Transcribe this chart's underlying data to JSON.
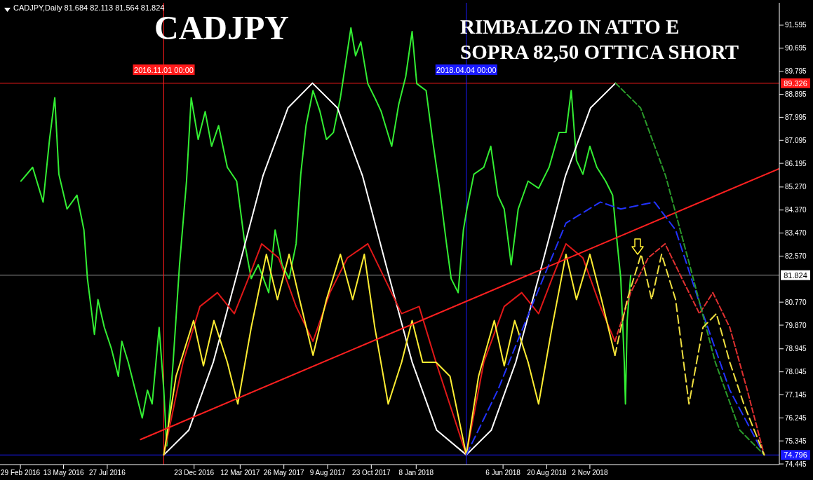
{
  "chart_data": {
    "type": "line",
    "title": "CADJPY",
    "subtitle": "RIMBALZO IN ATTO E\nSOPRA 82,50 OTTICA SHORT",
    "annotations": [
      "CADJPY,Daily 81.684 82.113 81.564 81.824"
    ],
    "xlim": [
      "2016-01-25",
      "2019-09-23"
    ],
    "xticks": [
      {
        "value": "2016-02-29",
        "label": "29 Feb 2016"
      },
      {
        "value": "2016-05-13",
        "label": "13 May 2016"
      },
      {
        "value": "2016-07-27",
        "label": "27 Jul 2016"
      },
      {
        "value": "2016-12-23",
        "label": "23 Dec 2016"
      },
      {
        "value": "2017-03-12",
        "label": "12 Mar 2017"
      },
      {
        "value": "2017-05-26",
        "label": "26 May 2017"
      },
      {
        "value": "2017-08-09",
        "label": "9 Aug 2017"
      },
      {
        "value": "2017-10-23",
        "label": "23 Oct 2017"
      },
      {
        "value": "2018-01-08",
        "label": "8 Jan 2018"
      },
      {
        "value": "2018-06-06",
        "label": "6 Jun 2018"
      },
      {
        "value": "2018-08-20",
        "label": "20 Aug 2018"
      },
      {
        "value": "2018-11-02",
        "label": "2 Nov 2018"
      }
    ],
    "ylim": [
      74.42,
      92.47
    ],
    "yticks": [
      91.595,
      90.695,
      89.795,
      88.895,
      87.995,
      87.095,
      86.195,
      {
        "value": 85.27,
        "label": "85.270"
      },
      {
        "value": 84.37,
        "label": "84.370"
      },
      {
        "value": 83.47,
        "label": "83.470"
      },
      {
        "value": 82.57,
        "label": "82.570"
      },
      {
        "value": 80.77,
        "label": "80.770"
      },
      {
        "value": 79.87,
        "label": "79.870"
      },
      78.945,
      78.045,
      77.145,
      76.245,
      75.345,
      74.445
    ],
    "ref_lines": [
      {
        "axis": "y",
        "value": 89.326,
        "label": "89.326",
        "color": "#ff1a1a"
      },
      {
        "axis": "y",
        "value": 81.824,
        "label": "81.824",
        "color": "#9a9a9a"
      },
      {
        "axis": "y",
        "value": 74.796,
        "label": "74.796",
        "color": "#1a1aff"
      },
      {
        "axis": "x",
        "value": "2016-11-01",
        "label": "2016.11.01 00:00",
        "color": "#ff1a1a"
      },
      {
        "axis": "x",
        "value": "2018-04-04",
        "label": "2018.04.04 00:00",
        "color": "#1a1aff"
      }
    ],
    "series": [
      {
        "color": "#33ee33",
        "x": [
          "2016-03-01",
          "2016-03-21",
          "2016-04-08",
          "2016-04-19",
          "2016-04-28",
          "2016-05-05",
          "2016-05-19",
          "2016-06-05",
          "2016-06-17",
          "2016-06-23",
          "2016-07-05",
          "2016-07-11",
          "2016-07-22",
          "2016-08-03",
          "2016-08-15",
          "2016-08-21",
          "2016-09-01",
          "2016-09-13",
          "2016-09-25",
          "2016-10-04",
          "2016-10-12",
          "2016-10-24",
          "2016-11-01",
          "2016-11-06",
          "2016-11-17",
          "2016-11-28",
          "2016-12-10",
          "2016-12-18",
          "2016-12-30",
          "2017-01-11",
          "2017-01-22",
          "2017-02-03",
          "2017-02-18",
          "2017-03-06",
          "2017-03-20",
          "2017-03-31",
          "2017-04-12",
          "2017-04-30",
          "2017-05-11",
          "2017-05-23",
          "2017-06-04",
          "2017-06-16",
          "2017-06-24",
          "2017-07-03",
          "2017-07-15",
          "2017-07-27",
          "2017-08-07",
          "2017-08-19",
          "2017-08-31",
          "2017-09-09",
          "2017-09-18",
          "2017-09-26",
          "2017-10-05",
          "2017-10-17",
          "2017-10-29",
          "2017-11-09",
          "2017-11-27",
          "2017-12-09",
          "2017-12-21",
          "2018-01-01",
          "2018-01-09",
          "2018-01-25",
          "2018-02-05",
          "2018-02-17",
          "2018-03-01",
          "2018-03-09",
          "2018-03-21",
          "2018-03-30",
          "2018-04-05",
          "2018-04-17",
          "2018-05-04",
          "2018-05-16",
          "2018-05-28",
          "2018-06-08",
          "2018-06-20",
          "2018-07-02",
          "2018-07-19",
          "2018-08-06",
          "2018-08-24",
          "2018-09-10",
          "2018-09-22",
          "2018-10-01",
          "2018-10-10",
          "2018-10-21",
          "2018-11-02",
          "2018-11-14",
          "2018-11-29",
          "2018-12-11",
          "2018-12-19",
          "2018-12-25",
          "2018-12-31",
          "2019-01-02",
          "2019-01-05",
          "2019-01-11"
        ],
        "values": [
          85.5,
          86.04,
          84.68,
          87.13,
          88.76,
          85.77,
          84.41,
          84.95,
          83.59,
          81.69,
          79.51,
          80.87,
          79.78,
          78.96,
          77.87,
          79.24,
          78.42,
          77.33,
          76.24,
          77.33,
          76.79,
          79.78,
          77.33,
          75.15,
          78.42,
          82.23,
          85.5,
          88.76,
          87.13,
          88.22,
          86.86,
          87.67,
          86.04,
          85.5,
          83.05,
          81.69,
          82.23,
          81.14,
          83.59,
          82.23,
          81.69,
          83.05,
          85.77,
          87.67,
          89.04,
          88.22,
          87.13,
          87.4,
          88.76,
          90.12,
          91.49,
          90.4,
          90.94,
          89.31,
          88.76,
          88.22,
          86.86,
          88.49,
          89.58,
          91.35,
          89.31,
          89.04,
          87.13,
          85.22,
          83.05,
          81.69,
          81.14,
          83.59,
          84.41,
          85.77,
          86.04,
          86.86,
          84.95,
          84.41,
          82.23,
          84.41,
          85.5,
          85.22,
          86.04,
          87.4,
          87.4,
          89.04,
          86.31,
          85.77,
          86.86,
          86.04,
          85.5,
          84.95,
          83.05,
          81.69,
          78.42,
          76.79,
          80.05,
          81.82
        ]
      },
      {
        "color": "#ffffff",
        "x": [
          "2016-11-01",
          "2016-12-14",
          "2017-01-25",
          "2017-03-09",
          "2017-04-20",
          "2017-06-02",
          "2017-07-14",
          "2017-08-26",
          "2017-10-08",
          "2017-11-19",
          "2018-01-01",
          "2018-02-12",
          "2018-04-04",
          "2018-05-17",
          "2018-06-28",
          "2018-08-10",
          "2018-09-21",
          "2018-11-03",
          "2018-12-16"
        ],
        "values": [
          74.8,
          75.77,
          78.43,
          82.07,
          85.7,
          88.36,
          89.33,
          88.36,
          85.7,
          82.07,
          78.43,
          75.77,
          74.8,
          75.77,
          78.43,
          82.07,
          85.7,
          88.36,
          89.33
        ]
      },
      {
        "color": "#2a9a2a",
        "line_style": "dashed",
        "x": [
          "2018-12-16",
          "2019-01-28",
          "2019-03-12",
          "2019-04-24",
          "2019-06-05",
          "2019-07-17",
          "2019-08-28"
        ],
        "values": [
          89.33,
          88.36,
          85.7,
          82.07,
          78.43,
          75.77,
          74.8
        ]
      },
      {
        "color": "#e01818",
        "x": [
          "2016-11-01",
          "2016-12-04",
          "2017-01-02",
          "2017-02-01",
          "2017-03-02",
          "2017-03-26",
          "2017-04-18",
          "2017-05-17",
          "2017-06-16",
          "2017-07-15",
          "2017-08-13",
          "2017-09-12",
          "2017-10-17",
          "2017-11-15",
          "2017-12-14",
          "2018-01-13",
          "2018-02-11",
          "2018-04-04",
          "2018-05-04",
          "2018-06-08",
          "2018-07-08",
          "2018-08-06",
          "2018-08-29",
          "2018-09-22",
          "2018-10-21",
          "2018-11-20",
          "2018-12-15"
        ],
        "values": [
          74.8,
          78.42,
          80.6,
          81.14,
          80.32,
          81.69,
          83.05,
          82.5,
          80.6,
          79.24,
          81.14,
          82.5,
          83.05,
          81.69,
          80.32,
          80.6,
          78.42,
          74.8,
          78.42,
          80.6,
          81.14,
          80.32,
          81.69,
          83.05,
          82.5,
          80.6,
          79.24
        ]
      },
      {
        "color": "#e03030",
        "line_style": "dashed",
        "x": [
          "2018-12-15",
          "2019-01-11",
          "2019-02-10",
          "2019-03-11",
          "2019-04-09",
          "2019-05-09",
          "2019-06-01",
          "2019-06-30",
          "2019-07-30",
          "2019-08-28"
        ],
        "values": [
          79.24,
          81.14,
          82.5,
          83.05,
          81.69,
          80.32,
          81.14,
          79.78,
          77.33,
          74.8
        ]
      },
      {
        "color": "#ffee33",
        "x": [
          "2016-11-01",
          "2016-11-22",
          "2016-12-22",
          "2017-01-08",
          "2017-01-26",
          "2017-02-18",
          "2017-03-08",
          "2017-03-31",
          "2017-04-26",
          "2017-05-15",
          "2017-06-04",
          "2017-06-22",
          "2017-07-15",
          "2017-08-07",
          "2017-08-31",
          "2017-09-21",
          "2017-10-11",
          "2017-10-29",
          "2017-11-21",
          "2017-12-14",
          "2018-01-01",
          "2018-01-19",
          "2018-02-11",
          "2018-03-07",
          "2018-04-04",
          "2018-04-25",
          "2018-05-22",
          "2018-06-08",
          "2018-06-26",
          "2018-07-19",
          "2018-08-06",
          "2018-08-29",
          "2018-09-22",
          "2018-10-10",
          "2018-11-02",
          "2018-11-22",
          "2018-12-15"
        ],
        "values": [
          74.8,
          77.87,
          80.05,
          78.28,
          80.05,
          78.42,
          76.79,
          79.78,
          82.64,
          80.87,
          82.64,
          80.87,
          78.69,
          80.87,
          82.64,
          80.87,
          82.64,
          79.78,
          76.79,
          78.42,
          80.05,
          78.42,
          78.42,
          77.87,
          74.8,
          77.87,
          80.05,
          78.28,
          80.05,
          78.42,
          76.79,
          79.78,
          82.64,
          80.87,
          82.64,
          80.87,
          78.69
        ]
      },
      {
        "color": "#f0e040",
        "line_style": "dashed",
        "x": [
          "2018-12-15",
          "2019-01-05",
          "2019-01-29",
          "2019-02-16",
          "2019-03-05",
          "2019-03-29",
          "2019-04-21",
          "2019-05-15",
          "2019-06-07",
          "2019-06-30",
          "2019-07-24",
          "2019-08-28"
        ],
        "values": [
          78.69,
          80.87,
          82.64,
          80.87,
          82.64,
          80.87,
          76.79,
          79.78,
          80.32,
          78.42,
          76.79,
          74.8
        ]
      },
      {
        "color": "#2233ff",
        "line_style": "dashed",
        "x": [
          "2018-04-04",
          "2018-05-28",
          "2018-07-25",
          "2018-09-22",
          "2018-11-20",
          "2018-12-25",
          "2019-02-21",
          "2019-03-29",
          "2019-05-15",
          "2019-06-30",
          "2019-08-28"
        ],
        "values": [
          74.8,
          77.33,
          80.6,
          83.86,
          84.68,
          84.41,
          84.68,
          83.59,
          80.32,
          77.33,
          74.8
        ]
      },
      {
        "color": "#ff2020",
        "x": [
          "2016-09-22",
          "2019-09-23"
        ],
        "values": [
          75.4,
          85.99
        ]
      }
    ]
  }
}
